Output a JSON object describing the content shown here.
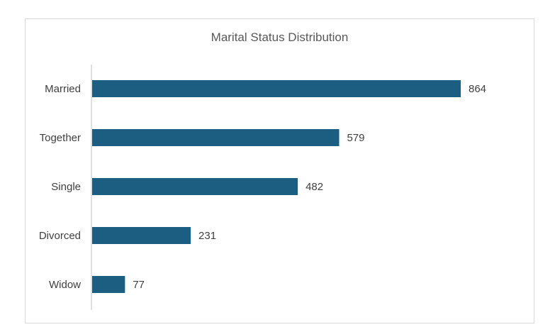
{
  "chart_data": {
    "type": "bar",
    "orientation": "horizontal",
    "title": "Marital Status Distribution",
    "categories": [
      "Married",
      "Together",
      "Single",
      "Divorced",
      "Widow"
    ],
    "values": [
      864,
      579,
      482,
      231,
      77
    ],
    "xlabel": "",
    "ylabel": "",
    "xlim": [
      0,
      1000
    ],
    "grid": false,
    "legend": "none",
    "data_labels": true,
    "bar_color": "#1b5e82"
  }
}
